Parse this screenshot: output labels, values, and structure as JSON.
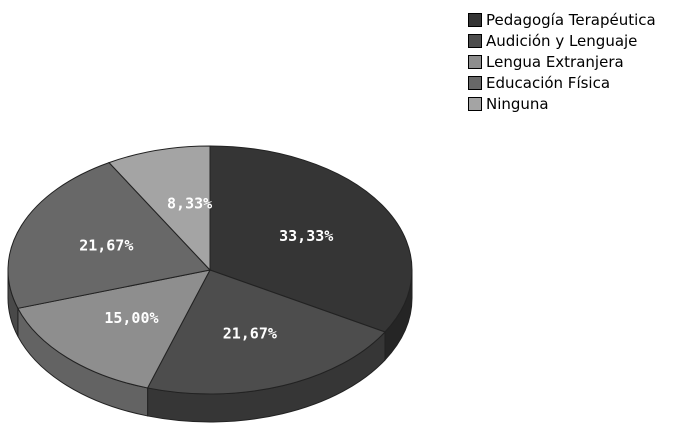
{
  "chart_data": {
    "type": "pie",
    "categories": [
      "Pedagogía Terapéutica",
      "Audición y Lenguaje",
      "Lengua Extranjera",
      "Educación Física",
      "Ninguna"
    ],
    "values": [
      33.33,
      21.67,
      15.0,
      21.67,
      8.33
    ],
    "labels": [
      "33,33%",
      "21,67%",
      "15,00%",
      "21,67%",
      "8,33%"
    ],
    "colors": [
      "#353535",
      "#4d4d4d",
      "#8e8e8e",
      "#686868",
      "#a4a4a4"
    ],
    "legend_position": "top-right",
    "style": "3d"
  }
}
